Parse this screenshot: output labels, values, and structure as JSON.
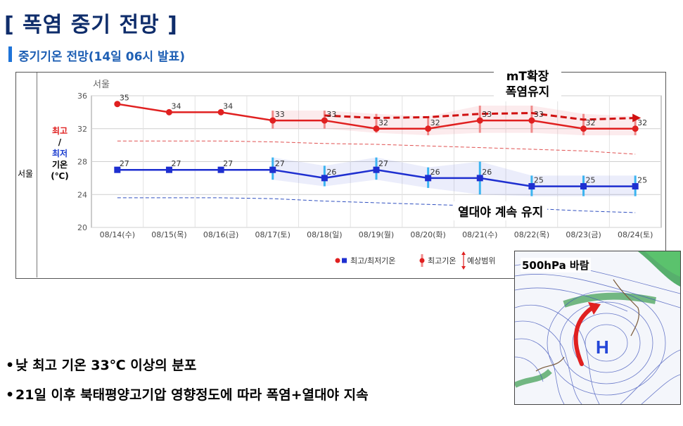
{
  "page": {
    "title": "[ 폭염 중기 전망 ]",
    "subtitle": "중기기온 전망(14일 06시 발표)"
  },
  "panel": {
    "side_label": "서울",
    "y_axis_label": {
      "max": "최고",
      "slash": "/",
      "min": "최저",
      "line2": "기온",
      "unit": "(℃)"
    }
  },
  "chart_data": {
    "type": "line",
    "title": "서울",
    "categories": [
      "08/14(수)",
      "08/15(목)",
      "08/16(금)",
      "08/17(토)",
      "08/18(일)",
      "08/19(월)",
      "08/20(화)",
      "08/21(수)",
      "08/22(목)",
      "08/23(금)",
      "08/24(토)"
    ],
    "ylim": [
      20,
      36
    ],
    "yticks": [
      20,
      24,
      28,
      32,
      36
    ],
    "grid": true,
    "series": [
      {
        "name": "최고",
        "color": "#e02020",
        "marker": "circle",
        "values": [
          35,
          34,
          34,
          33,
          33,
          32,
          32,
          33,
          33,
          32,
          32
        ]
      },
      {
        "name": "최저",
        "color": "#1e2fd0",
        "marker": "square",
        "values": [
          27,
          27,
          27,
          27,
          26,
          27,
          26,
          26,
          25,
          25,
          25
        ]
      }
    ],
    "max_range": [
      null,
      null,
      null,
      [
        32,
        34.2
      ],
      [
        32,
        34.2
      ],
      [
        31.5,
        33.8
      ],
      [
        31.2,
        33.5
      ],
      [
        31.5,
        34.8
      ],
      [
        31.5,
        34.8
      ],
      [
        31.2,
        33.8
      ],
      [
        31.2,
        33.5
      ]
    ],
    "min_range": [
      null,
      null,
      null,
      [
        25.8,
        28.5
      ],
      [
        25,
        27.5
      ],
      [
        25.8,
        28.5
      ],
      [
        24.8,
        27.3
      ],
      [
        24,
        28
      ],
      [
        23.8,
        26.3
      ],
      [
        23.8,
        26.3
      ],
      [
        23.8,
        26.3
      ]
    ],
    "normal_max": [
      30.5,
      30.5,
      30.5,
      30.4,
      30.2,
      30.1,
      29.9,
      29.7,
      29.5,
      29.3,
      28.9
    ],
    "normal_min": [
      23.6,
      23.6,
      23.6,
      23.5,
      23.2,
      23.0,
      22.8,
      22.6,
      22.3,
      22.0,
      21.8
    ],
    "forecast_trend": [
      null,
      null,
      null,
      null,
      33.6,
      33.3,
      33.4,
      33.8,
      33.9,
      33.1,
      33.3
    ],
    "legend": [
      {
        "label": "최고/최저기온",
        "color_a": "#e02020",
        "color_b": "#1e2fd0"
      },
      {
        "label": "최고기온",
        "color": "#e02020"
      },
      {
        "label": "예상범위",
        "color": "#e02020"
      }
    ]
  },
  "annotations": {
    "mt_line1": "mT확장",
    "mt_line2": "폭염유지",
    "tropical_night": "열대야 계속 유지"
  },
  "bullets": [
    "낮 최고 기온 33℃ 이상의 분포",
    "21일 이후 북태평양고기압 영향정도에 따라 폭염+열대야 지속"
  ],
  "inset_map": {
    "label": "500hPa 바람",
    "high_label": "H"
  }
}
